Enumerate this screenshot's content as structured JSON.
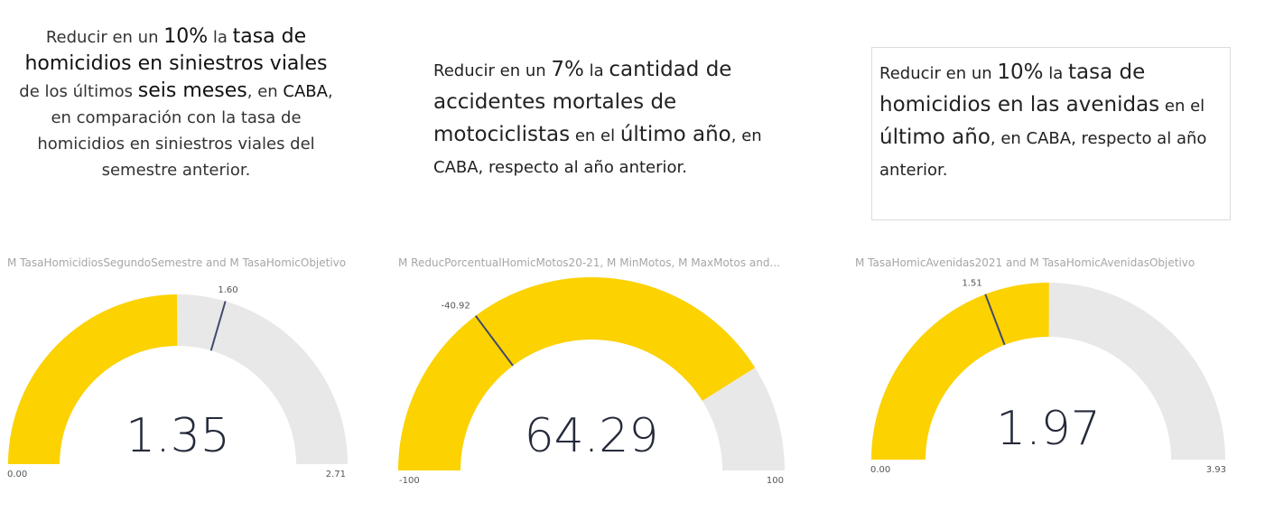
{
  "texts": {
    "t1": {
      "p1": "Reducir en un ",
      "p2": "10%",
      "p3": " la ",
      "p4": "tasa de homicidios en siniestros viales",
      "p5": " de los últimos ",
      "p6": "seis meses",
      "p7": ", en ",
      "p8": "CABA",
      "p9": ", en comparación con la tasa de homicidios en siniestros viales del semestre anterior."
    },
    "t2": {
      "p1": "Reducir en un ",
      "p2": "7%",
      "p3": " la ",
      "p4": "cantidad de accidentes mortales de motociclistas",
      "p5": " en el ",
      "p6": "último año",
      "p7": ", en CABA, respecto al año anterior."
    },
    "t3": {
      "p1": "Reducir en un ",
      "p2": "10%",
      "p3": " la  ",
      "p4": "tasa de homicidios  en las avenidas",
      "p5": " en el ",
      "p6": "último año",
      "p7": ", en CABA, respecto al año anterior."
    }
  },
  "gauges": [
    {
      "title": "M TasaHomicidiosSegundoSemestre and M TasaHomicObjetivo",
      "value": 1.35,
      "value_label": "1.35",
      "min": 0,
      "max": 2.71,
      "min_label": "0.00",
      "max_label": "2.71",
      "target": 1.6,
      "target_label": "1.60"
    },
    {
      "title": "M ReducPorcentualHomicMotos20-21, M MinMotos, M MaxMotos and...",
      "value": 64.29,
      "value_label": "64.29",
      "min": -100,
      "max": 100,
      "min_label": "-100",
      "max_label": "100",
      "target": -40.92,
      "target_label": "-40.92"
    },
    {
      "title": "M TasaHomicAvenidas2021 and M TasaHomicAvenidasObjetivo",
      "value": 1.97,
      "value_label": "1.97",
      "min": 0,
      "max": 3.93,
      "min_label": "0.00",
      "max_label": "3.93",
      "target": 1.51,
      "target_label": "1.51"
    }
  ],
  "colors": {
    "fill": "#FCD200",
    "track": "#E8E8E8",
    "target": "#404a6e",
    "value_text": "#252a3a"
  }
}
